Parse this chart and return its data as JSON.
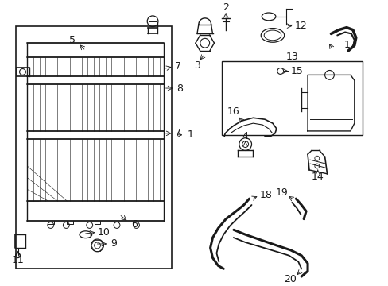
{
  "bg_color": "#ffffff",
  "line_color": "#1a1a1a",
  "label_fontsize": 8,
  "fig_w": 4.89,
  "fig_h": 3.6,
  "dpi": 100
}
